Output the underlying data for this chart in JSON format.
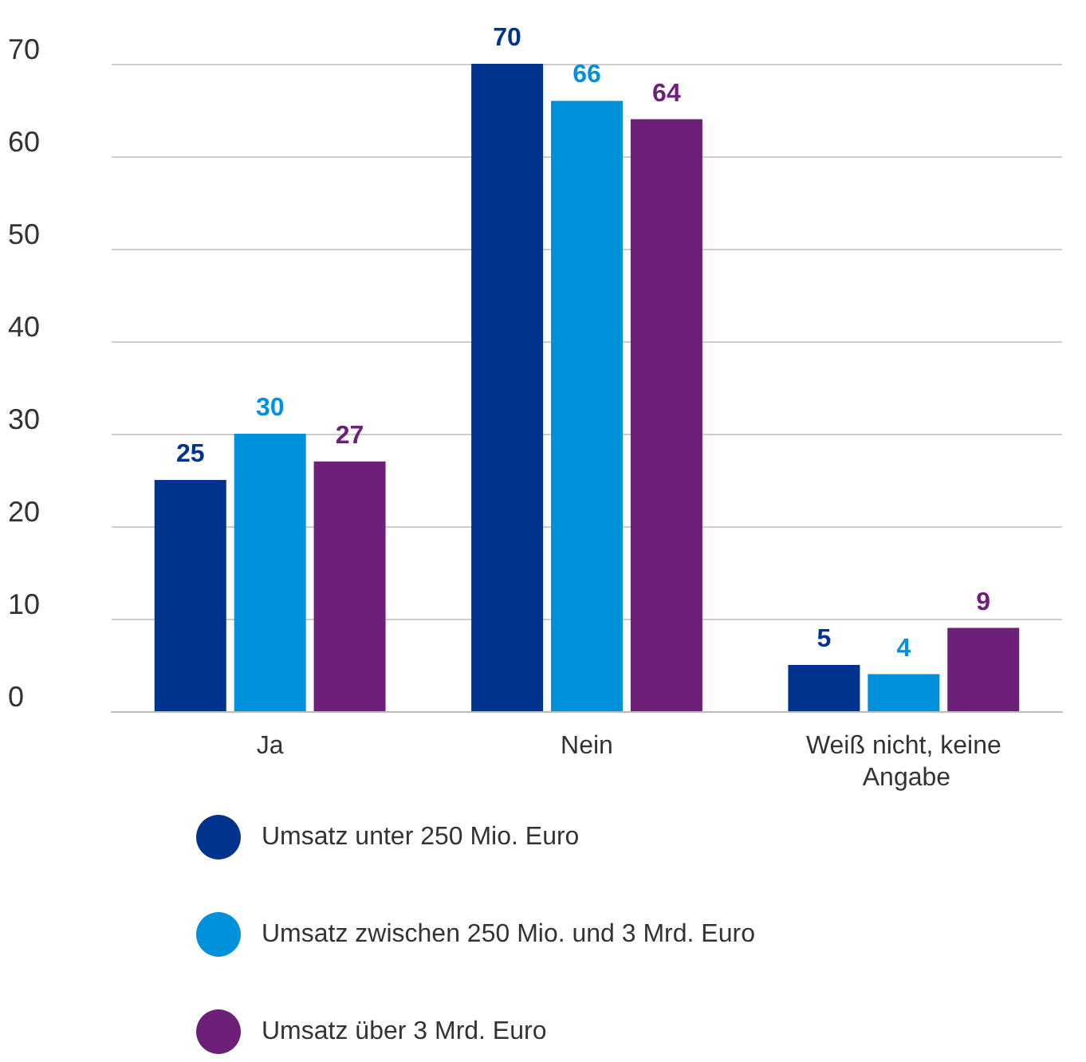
{
  "chart_data": {
    "type": "bar",
    "categories": [
      "Ja",
      "Nein",
      "Weiß nicht, keine Angabe"
    ],
    "series": [
      {
        "name": "Umsatz unter 250 Mio. Euro",
        "color": "#00338d",
        "values": [
          25,
          70,
          5
        ]
      },
      {
        "name": "Umsatz zwischen 250 Mio. und 3 Mrd. Euro",
        "color": "#0091da",
        "values": [
          30,
          66,
          4
        ]
      },
      {
        "name": "Umsatz über 3 Mrd. Euro",
        "color": "#6d2077",
        "values": [
          27,
          64,
          9
        ]
      }
    ],
    "ylim": [
      0,
      70
    ],
    "yticks": [
      0,
      10,
      20,
      30,
      40,
      50,
      60,
      70
    ],
    "grid": "y",
    "legend": "bottom",
    "data_labels": true
  }
}
